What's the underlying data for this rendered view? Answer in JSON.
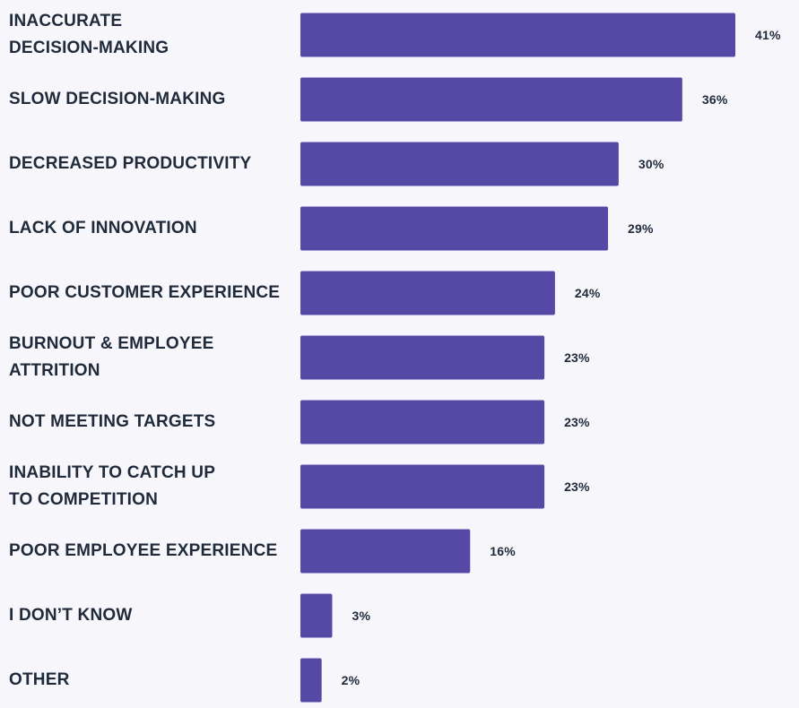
{
  "chart_data": {
    "type": "bar",
    "orientation": "horizontal",
    "bar_color": "#5649a6",
    "value_suffix": "%",
    "categories": [
      "INACCURATE\nDECISION-MAKING",
      "SLOW DECISION-MAKING",
      "DECREASED PRODUCTIVITY",
      "LACK OF INNOVATION",
      "POOR CUSTOMER EXPERIENCE",
      "BURNOUT & EMPLOYEE\nATTRITION",
      "NOT MEETING TARGETS",
      "INABILITY TO CATCH UP\nTO COMPETITION",
      "POOR EMPLOYEE EXPERIENCE",
      "I DON’T KNOW",
      "OTHER"
    ],
    "values": [
      41,
      36,
      30,
      29,
      24,
      23,
      23,
      23,
      16,
      3,
      2
    ],
    "value_labels": [
      "41%",
      "36%",
      "30%",
      "29%",
      "24%",
      "23%",
      "23%",
      "23%",
      "16%",
      "3%",
      "2%"
    ],
    "title": "",
    "xlabel": "",
    "ylabel": "",
    "xlim": [
      0,
      41
    ]
  }
}
